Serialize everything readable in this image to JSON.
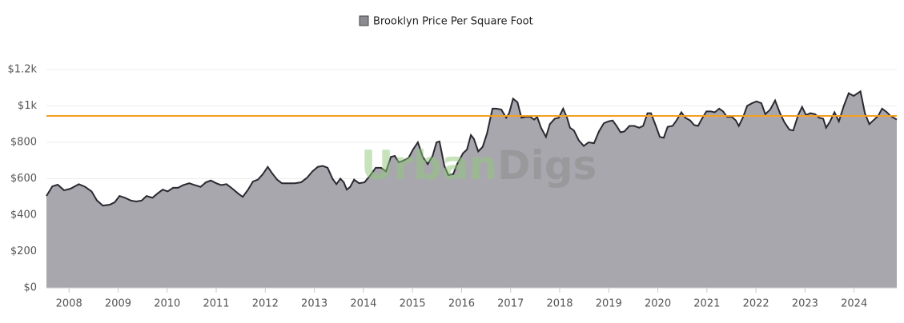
{
  "chart_data": {
    "type": "area",
    "legend": "Brooklyn Price Per Square Foot",
    "watermark": {
      "first": "Urban",
      "second": "Digs"
    },
    "x": [
      2007.54,
      2007.66,
      2007.77,
      2007.9,
      2008.03,
      2008.2,
      2008.33,
      2008.46,
      2008.57,
      2008.69,
      2008.83,
      2008.93,
      2009.03,
      2009.14,
      2009.26,
      2009.37,
      2009.48,
      2009.58,
      2009.7,
      2009.81,
      2009.91,
      2010.01,
      2010.12,
      2010.22,
      2010.33,
      2010.45,
      2010.56,
      2010.68,
      2010.79,
      2010.89,
      2011.0,
      2011.1,
      2011.21,
      2011.33,
      2011.44,
      2011.54,
      2011.65,
      2011.75,
      2011.85,
      2011.95,
      2012.05,
      2012.14,
      2012.24,
      2012.34,
      2012.47,
      2012.6,
      2012.73,
      2012.85,
      2012.96,
      2013.07,
      2013.17,
      2013.27,
      2013.37,
      2013.45,
      2013.53,
      2013.6,
      2013.66,
      2013.73,
      2013.81,
      2013.91,
      2014.02,
      2014.13,
      2014.25,
      2014.36,
      2014.46,
      2014.56,
      2014.64,
      2014.72,
      2014.82,
      2014.92,
      2015.01,
      2015.11,
      2015.21,
      2015.31,
      2015.41,
      2015.49,
      2015.55,
      2015.65,
      2015.73,
      2015.83,
      2015.91,
      2016.03,
      2016.11,
      2016.19,
      2016.25,
      2016.34,
      2016.43,
      2016.52,
      2016.63,
      2016.71,
      2016.81,
      2016.91,
      2016.97,
      2017.05,
      2017.14,
      2017.22,
      2017.31,
      2017.4,
      2017.48,
      2017.54,
      2017.62,
      2017.72,
      2017.8,
      2017.9,
      2017.98,
      2018.07,
      2018.15,
      2018.21,
      2018.29,
      2018.39,
      2018.49,
      2018.59,
      2018.7,
      2018.8,
      2018.9,
      2018.99,
      2019.08,
      2019.16,
      2019.24,
      2019.32,
      2019.42,
      2019.52,
      2019.62,
      2019.7,
      2019.79,
      2019.86,
      2019.96,
      2020.04,
      2020.12,
      2020.2,
      2020.3,
      2020.38,
      2020.48,
      2020.56,
      2020.66,
      2020.74,
      2020.82,
      2020.9,
      2020.99,
      2021.08,
      2021.16,
      2021.25,
      2021.33,
      2021.41,
      2021.51,
      2021.59,
      2021.65,
      2021.74,
      2021.82,
      2021.92,
      2022.01,
      2022.11,
      2022.19,
      2022.29,
      2022.39,
      2022.49,
      2022.58,
      2022.68,
      2022.76,
      2022.86,
      2022.94,
      2023.02,
      2023.11,
      2023.2,
      2023.29,
      2023.37,
      2023.43,
      2023.51,
      2023.6,
      2023.69,
      2023.79,
      2023.89,
      2023.99,
      2024.13,
      2024.22,
      2024.31,
      2024.41,
      2024.49,
      2024.57,
      2024.67,
      2024.74,
      2024.87
    ],
    "values": [
      505,
      558,
      567,
      536,
      545,
      570,
      555,
      530,
      480,
      452,
      457,
      470,
      505,
      495,
      480,
      475,
      480,
      505,
      495,
      520,
      540,
      530,
      550,
      550,
      565,
      575,
      565,
      555,
      580,
      590,
      575,
      565,
      570,
      545,
      520,
      500,
      540,
      585,
      595,
      625,
      665,
      630,
      595,
      575,
      575,
      575,
      580,
      605,
      640,
      665,
      670,
      660,
      600,
      570,
      600,
      580,
      540,
      555,
      595,
      575,
      580,
      615,
      660,
      660,
      640,
      720,
      725,
      690,
      700,
      715,
      760,
      800,
      720,
      680,
      725,
      800,
      805,
      670,
      620,
      625,
      680,
      740,
      760,
      840,
      820,
      750,
      775,
      850,
      985,
      985,
      980,
      935,
      960,
      1040,
      1020,
      935,
      940,
      940,
      925,
      940,
      880,
      830,
      900,
      930,
      935,
      985,
      935,
      880,
      865,
      810,
      780,
      800,
      795,
      860,
      905,
      915,
      920,
      890,
      855,
      860,
      890,
      890,
      880,
      890,
      960,
      960,
      890,
      830,
      825,
      885,
      890,
      920,
      965,
      935,
      920,
      895,
      890,
      930,
      970,
      970,
      965,
      985,
      970,
      940,
      940,
      920,
      890,
      940,
      1000,
      1015,
      1025,
      1015,
      955,
      980,
      1030,
      960,
      910,
      870,
      865,
      950,
      995,
      950,
      960,
      955,
      935,
      930,
      880,
      915,
      965,
      915,
      1000,
      1070,
      1055,
      1080,
      960,
      900,
      925,
      945,
      985,
      965,
      945,
      925
    ],
    "color": "#a9a7ae",
    "line_color": "#2a2930",
    "reference_line": {
      "value": 945,
      "color": "#f5a020"
    },
    "xlim": [
      2007.54,
      2024.87
    ],
    "xticks": [
      2008,
      2009,
      2010,
      2011,
      2012,
      2013,
      2014,
      2015,
      2016,
      2017,
      2018,
      2019,
      2020,
      2021,
      2022,
      2023,
      2024
    ],
    "ylim": [
      0,
      1200
    ],
    "yticks": [
      {
        "value": 0,
        "label": "$0"
      },
      {
        "value": 200,
        "label": "$200"
      },
      {
        "value": 400,
        "label": "$400"
      },
      {
        "value": 600,
        "label": "$600"
      },
      {
        "value": 800,
        "label": "$800"
      },
      {
        "value": 1000,
        "label": "$1k"
      },
      {
        "value": 1200,
        "label": "$1.2k"
      }
    ],
    "grid": true
  }
}
